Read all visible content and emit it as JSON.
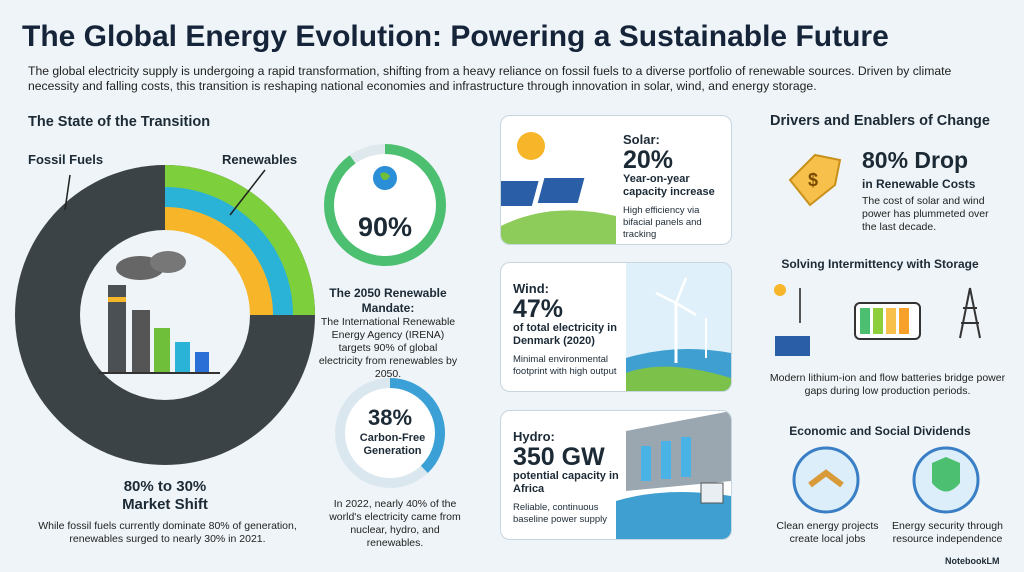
{
  "header": {
    "title": "The Global Energy Evolution: Powering a Sustainable Future",
    "intro": "The global electricity supply is undergoing a rapid transformation, shifting from a heavy reliance on fossil fuels to a diverse portfolio of renewable sources. Driven by climate necessity and falling costs, this transition is reshaping national economies and infrastructure through innovation in solar, wind, and energy storage."
  },
  "transition": {
    "heading": "The State of the Transition",
    "fossil_label": "Fossil Fuels",
    "renewables_label": "Renewables",
    "stat": "80% to 30%",
    "stat_label": "Market Shift",
    "text": "While fossil fuels currently dominate 80% of generation, renewables surged to nearly 30% in 2021."
  },
  "mandate": {
    "stat": "90%",
    "title": "The 2050 Renewable Mandate:",
    "text": "The International Renewable Energy Agency (IRENA) targets 90% of global electricity from renewables by 2050."
  },
  "carbon_free": {
    "stat": "38%",
    "label": "Carbon-Free Generation",
    "text": "In 2022, nearly 40% of the world's electricity came from nuclear, hydro, and renewables."
  },
  "cards": [
    {
      "name": "Solar:",
      "stat": "20%",
      "label": "Year-on-year capacity increase",
      "text": "High efficiency via bifacial panels and tracking"
    },
    {
      "name": "Wind:",
      "stat": "47%",
      "label": "of total electricity in Denmark (2020)",
      "text": "Minimal environmental footprint with high output"
    },
    {
      "name": "Hydro:",
      "stat": "350 GW",
      "label": "potential capacity in Africa",
      "text": "Reliable, continuous baseline power supply"
    }
  ],
  "drivers": {
    "heading": "Drivers and Enablers of Change",
    "cost_stat": "80% Drop",
    "cost_label": "in Renewable Costs",
    "cost_text": "The cost of solar and wind power has plummeted over the last decade.",
    "storage_heading": "Solving Intermittency with Storage",
    "storage_text": "Modern lithium-ion and flow batteries bridge power gaps during low production periods.",
    "dividends_heading": "Economic and Social Dividends",
    "dividends": [
      "Clean energy projects create local jobs",
      "Energy security through resource independence"
    ]
  },
  "footer": {
    "brand": "NotebookLM"
  }
}
